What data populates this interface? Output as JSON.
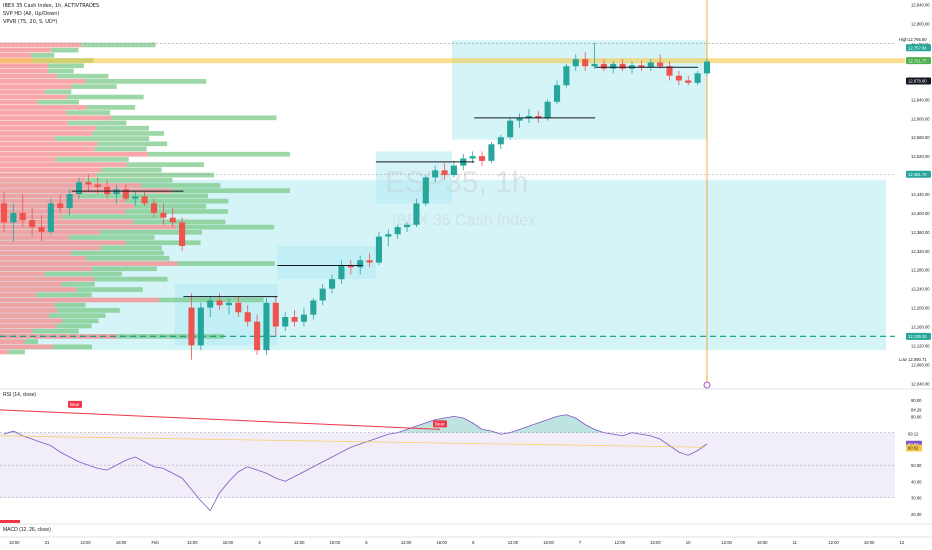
{
  "header": {
    "line1": "IBEX 35 Cash Index, 1h, ACTIVTRADES",
    "line2": "SVP HD (All, Up/Down)",
    "line3": "VPVR (75, 20, S, UD*)"
  },
  "watermark": {
    "symbol": "ESP35, 1h",
    "description": "IBEX 35 Cash Index"
  },
  "colors": {
    "up": "#26a69a",
    "down": "#ef5350",
    "zone": "#b2ebf2",
    "vp_up": "#7cc98a",
    "vp_down": "#f48a8a",
    "rsi_line": "#7e57c2",
    "rsi_band": "#ede7f6",
    "trendline": "#f23645",
    "dashed_green": "#089981",
    "ma_yellow": "#f7c948",
    "cursor_orange": "#ff9800",
    "macd_red": "#f23645"
  },
  "price_axis": {
    "ticks": [
      "12,840.00",
      "12,800.00",
      "12,760.00",
      "12,720.00",
      "12,680.00",
      "12,640.00",
      "12,600.00",
      "12,560.00",
      "12,520.00",
      "12,480.00",
      "12,440.00",
      "12,400.00",
      "12,360.00",
      "12,320.00",
      "12,280.00",
      "12,240.00",
      "12,200.00",
      "12,160.00",
      "12,120.00",
      "12,080.00",
      "12,040.00"
    ],
    "badge_high_label": "High",
    "badge_high": "12,766.80",
    "badge_green_1": "12,757.84",
    "badge_yellow": "12,721.77",
    "badge_current": "12,678.80",
    "badge_mid": "12,481.72",
    "badge_green_2": "12,139.20",
    "badge_low_label": "Low",
    "badge_low": "12,090.71"
  },
  "rsi_pane": {
    "title": "RSI (14, close)",
    "ticks": [
      "90.00",
      "80.00",
      "70.00",
      "60.00",
      "50.00",
      "40.00",
      "30.00",
      "20.00"
    ],
    "extra_ticks": [
      "84.29"
    ],
    "badge_1": "69.12",
    "badge_2": "62.84",
    "badge_3": "60.52",
    "bear_label_1": "Bear",
    "bear_label_2": "Bear"
  },
  "macd_pane": {
    "title": "MACD (12, 26, close)"
  },
  "time_axis": {
    "labels": [
      "16:00",
      "31",
      "12:00",
      "16:00",
      "Feb",
      "12:00",
      "16:00",
      "4",
      "12:00",
      "16:00",
      "5",
      "12:00",
      "16:00",
      "6",
      "12:00",
      "16:00",
      "7",
      "12:00",
      "16:00",
      "10",
      "12:00",
      "16:00",
      "11",
      "12:00",
      "16:00",
      "12"
    ]
  },
  "chart_data": {
    "type": "candlestick",
    "price_range": [
      12030,
      12850
    ],
    "candles": [
      {
        "o": 12420,
        "h": 12445,
        "l": 12360,
        "c": 12380
      },
      {
        "o": 12380,
        "h": 12420,
        "l": 12340,
        "c": 12400
      },
      {
        "o": 12400,
        "h": 12440,
        "l": 12370,
        "c": 12385
      },
      {
        "o": 12385,
        "h": 12410,
        "l": 12350,
        "c": 12370
      },
      {
        "o": 12370,
        "h": 12395,
        "l": 12340,
        "c": 12360
      },
      {
        "o": 12360,
        "h": 12430,
        "l": 12355,
        "c": 12420
      },
      {
        "o": 12420,
        "h": 12440,
        "l": 12400,
        "c": 12410
      },
      {
        "o": 12410,
        "h": 12450,
        "l": 12395,
        "c": 12440
      },
      {
        "o": 12440,
        "h": 12475,
        "l": 12430,
        "c": 12465
      },
      {
        "o": 12465,
        "h": 12480,
        "l": 12445,
        "c": 12460
      },
      {
        "o": 12460,
        "h": 12475,
        "l": 12440,
        "c": 12455
      },
      {
        "o": 12455,
        "h": 12470,
        "l": 12430,
        "c": 12440
      },
      {
        "o": 12440,
        "h": 12460,
        "l": 12420,
        "c": 12450
      },
      {
        "o": 12450,
        "h": 12460,
        "l": 12425,
        "c": 12430
      },
      {
        "o": 12430,
        "h": 12445,
        "l": 12415,
        "c": 12435
      },
      {
        "o": 12435,
        "h": 12445,
        "l": 12415,
        "c": 12420
      },
      {
        "o": 12420,
        "h": 12430,
        "l": 12390,
        "c": 12400
      },
      {
        "o": 12400,
        "h": 12420,
        "l": 12375,
        "c": 12390
      },
      {
        "o": 12390,
        "h": 12410,
        "l": 12370,
        "c": 12380
      },
      {
        "o": 12380,
        "h": 12390,
        "l": 12320,
        "c": 12330
      },
      {
        "o": 12200,
        "h": 12230,
        "l": 12090,
        "c": 12120
      },
      {
        "o": 12120,
        "h": 12210,
        "l": 12110,
        "c": 12200
      },
      {
        "o": 12200,
        "h": 12225,
        "l": 12180,
        "c": 12215
      },
      {
        "o": 12215,
        "h": 12230,
        "l": 12195,
        "c": 12205
      },
      {
        "o": 12205,
        "h": 12220,
        "l": 12185,
        "c": 12210
      },
      {
        "o": 12210,
        "h": 12225,
        "l": 12180,
        "c": 12190
      },
      {
        "o": 12190,
        "h": 12205,
        "l": 12160,
        "c": 12170
      },
      {
        "o": 12170,
        "h": 12185,
        "l": 12100,
        "c": 12110
      },
      {
        "o": 12110,
        "h": 12220,
        "l": 12100,
        "c": 12210
      },
      {
        "o": 12210,
        "h": 12225,
        "l": 12140,
        "c": 12160
      },
      {
        "o": 12160,
        "h": 12190,
        "l": 12150,
        "c": 12180
      },
      {
        "o": 12180,
        "h": 12195,
        "l": 12160,
        "c": 12170
      },
      {
        "o": 12170,
        "h": 12200,
        "l": 12160,
        "c": 12185
      },
      {
        "o": 12185,
        "h": 12220,
        "l": 12175,
        "c": 12215
      },
      {
        "o": 12215,
        "h": 12250,
        "l": 12205,
        "c": 12240
      },
      {
        "o": 12240,
        "h": 12270,
        "l": 12230,
        "c": 12260
      },
      {
        "o": 12260,
        "h": 12300,
        "l": 12250,
        "c": 12290
      },
      {
        "o": 12290,
        "h": 12300,
        "l": 12270,
        "c": 12285
      },
      {
        "o": 12285,
        "h": 12310,
        "l": 12270,
        "c": 12300
      },
      {
        "o": 12300,
        "h": 12315,
        "l": 12285,
        "c": 12295
      },
      {
        "o": 12295,
        "h": 12360,
        "l": 12290,
        "c": 12350
      },
      {
        "o": 12350,
        "h": 12365,
        "l": 12330,
        "c": 12355
      },
      {
        "o": 12355,
        "h": 12375,
        "l": 12345,
        "c": 12370
      },
      {
        "o": 12370,
        "h": 12380,
        "l": 12360,
        "c": 12375
      },
      {
        "o": 12375,
        "h": 12430,
        "l": 12370,
        "c": 12420
      },
      {
        "o": 12420,
        "h": 12480,
        "l": 12415,
        "c": 12475
      },
      {
        "o": 12475,
        "h": 12500,
        "l": 12465,
        "c": 12490
      },
      {
        "o": 12490,
        "h": 12505,
        "l": 12470,
        "c": 12480
      },
      {
        "o": 12480,
        "h": 12510,
        "l": 12475,
        "c": 12500
      },
      {
        "o": 12500,
        "h": 12525,
        "l": 12490,
        "c": 12515
      },
      {
        "o": 12515,
        "h": 12530,
        "l": 12505,
        "c": 12520
      },
      {
        "o": 12520,
        "h": 12530,
        "l": 12500,
        "c": 12510
      },
      {
        "o": 12510,
        "h": 12550,
        "l": 12505,
        "c": 12545
      },
      {
        "o": 12545,
        "h": 12565,
        "l": 12535,
        "c": 12560
      },
      {
        "o": 12560,
        "h": 12600,
        "l": 12555,
        "c": 12595
      },
      {
        "o": 12595,
        "h": 12610,
        "l": 12580,
        "c": 12600
      },
      {
        "o": 12600,
        "h": 12620,
        "l": 12590,
        "c": 12605
      },
      {
        "o": 12605,
        "h": 12615,
        "l": 12590,
        "c": 12600
      },
      {
        "o": 12600,
        "h": 12640,
        "l": 12595,
        "c": 12635
      },
      {
        "o": 12635,
        "h": 12680,
        "l": 12630,
        "c": 12670
      },
      {
        "o": 12670,
        "h": 12715,
        "l": 12665,
        "c": 12710
      },
      {
        "o": 12710,
        "h": 12735,
        "l": 12700,
        "c": 12725
      },
      {
        "o": 12725,
        "h": 12740,
        "l": 12700,
        "c": 12710
      },
      {
        "o": 12710,
        "h": 12760,
        "l": 12705,
        "c": 12715
      },
      {
        "o": 12715,
        "h": 12725,
        "l": 12700,
        "c": 12705
      },
      {
        "o": 12705,
        "h": 12720,
        "l": 12695,
        "c": 12715
      },
      {
        "o": 12715,
        "h": 12725,
        "l": 12700,
        "c": 12705
      },
      {
        "o": 12705,
        "h": 12720,
        "l": 12695,
        "c": 12712
      },
      {
        "o": 12712,
        "h": 12722,
        "l": 12700,
        "c": 12708
      },
      {
        "o": 12708,
        "h": 12725,
        "l": 12700,
        "c": 12718
      },
      {
        "o": 12718,
        "h": 12735,
        "l": 12705,
        "c": 12710
      },
      {
        "o": 12710,
        "h": 12720,
        "l": 12680,
        "c": 12690
      },
      {
        "o": 12690,
        "h": 12700,
        "l": 12670,
        "c": 12680
      },
      {
        "o": 12680,
        "h": 12690,
        "l": 12670,
        "c": 12675
      },
      {
        "o": 12675,
        "h": 12700,
        "l": 12670,
        "c": 12695
      },
      {
        "o": 12695,
        "h": 12725,
        "l": 12690,
        "c": 12720
      }
    ],
    "zones": [
      {
        "x0": 0.0,
        "x1": 0.99,
        "p_top": 12470,
        "p_bot": 12110
      },
      {
        "x0": 0.195,
        "x1": 0.31,
        "p_top": 12250,
        "p_bot": 12120
      },
      {
        "x0": 0.31,
        "x1": 0.42,
        "p_top": 12330,
        "p_bot": 12260
      },
      {
        "x0": 0.42,
        "x1": 0.505,
        "p_top": 12530,
        "p_bot": 12420
      },
      {
        "x0": 0.505,
        "x1": 0.79,
        "p_top": 12765,
        "p_bot": 12555
      }
    ],
    "poc_segments": [
      {
        "x0": 0.08,
        "x1": 0.205,
        "p": 12446
      },
      {
        "x0": 0.205,
        "x1": 0.31,
        "p": 12223
      },
      {
        "x0": 0.31,
        "x1": 0.405,
        "p": 12289
      },
      {
        "x0": 0.42,
        "x1": 0.53,
        "p": 12508
      },
      {
        "x0": 0.53,
        "x1": 0.665,
        "p": 12601
      },
      {
        "x0": 0.665,
        "x1": 0.78,
        "p": 12708
      }
    ],
    "dashed_levels": [
      12757.84,
      12481.72,
      12139.2
    ],
    "highlight_level": 12721.77,
    "rsi": [
      69,
      71,
      68,
      66,
      64,
      62,
      58,
      55,
      52,
      50,
      48,
      47,
      50,
      53,
      55,
      52,
      49,
      48,
      45,
      42,
      35,
      28,
      22,
      33,
      40,
      46,
      49,
      47,
      45,
      42,
      40,
      43,
      46,
      49,
      52,
      55,
      58,
      61,
      63,
      65,
      67,
      69,
      70,
      72,
      74,
      76,
      78,
      79,
      80,
      79,
      76,
      72,
      71,
      69,
      70,
      72,
      74,
      76,
      78,
      80,
      81,
      79,
      75,
      72,
      70,
      69,
      68,
      70,
      69,
      68,
      66,
      62,
      58,
      56,
      59,
      63
    ]
  }
}
